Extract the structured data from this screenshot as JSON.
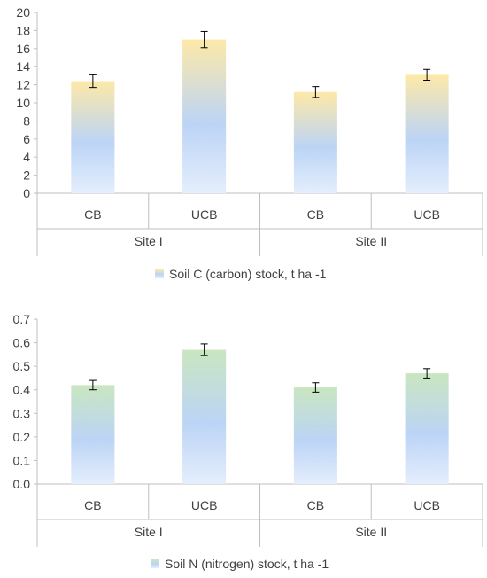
{
  "chart_data": [
    {
      "type": "bar",
      "groups": [
        {
          "label": "Site I",
          "categories": [
            "CB",
            "UCB"
          ]
        },
        {
          "label": "Site II",
          "categories": [
            "CB",
            "UCB"
          ]
        }
      ],
      "categories": [
        "CB",
        "UCB",
        "CB",
        "UCB"
      ],
      "series": [
        {
          "name": "Soil C (carbon) stock, t ha -1",
          "values": [
            12.4,
            17.0,
            11.2,
            13.1
          ],
          "errors": [
            0.7,
            0.9,
            0.6,
            0.6
          ]
        }
      ],
      "ylim": [
        0,
        20
      ],
      "yticks": [
        "0",
        "2",
        "4",
        "6",
        "8",
        "10",
        "12",
        "14",
        "16",
        "18",
        "20"
      ],
      "legend_position": "bottom",
      "colors": {
        "bar_top": "#fde9a8",
        "bar_bottom": "#e4eefc",
        "bar_mid": "#bcd4f6"
      },
      "grid": false
    },
    {
      "type": "bar",
      "groups": [
        {
          "label": "Site I",
          "categories": [
            "CB",
            "UCB"
          ]
        },
        {
          "label": "Site II",
          "categories": [
            "CB",
            "UCB"
          ]
        }
      ],
      "categories": [
        "CB",
        "UCB",
        "CB",
        "UCB"
      ],
      "series": [
        {
          "name": "Soil N (nitrogen) stock, t ha -1",
          "values": [
            0.42,
            0.57,
            0.41,
            0.47
          ],
          "errors": [
            0.02,
            0.025,
            0.02,
            0.02
          ]
        }
      ],
      "ylim": [
        0,
        0.7
      ],
      "yticks": [
        "0.0",
        "0.1",
        "0.2",
        "0.3",
        "0.4",
        "0.5",
        "0.6",
        "0.7"
      ],
      "legend_position": "bottom",
      "colors": {
        "bar_top": "#c9e6c0",
        "bar_bottom": "#e4eefc",
        "bar_mid": "#bcd4f6"
      },
      "grid": false
    }
  ]
}
